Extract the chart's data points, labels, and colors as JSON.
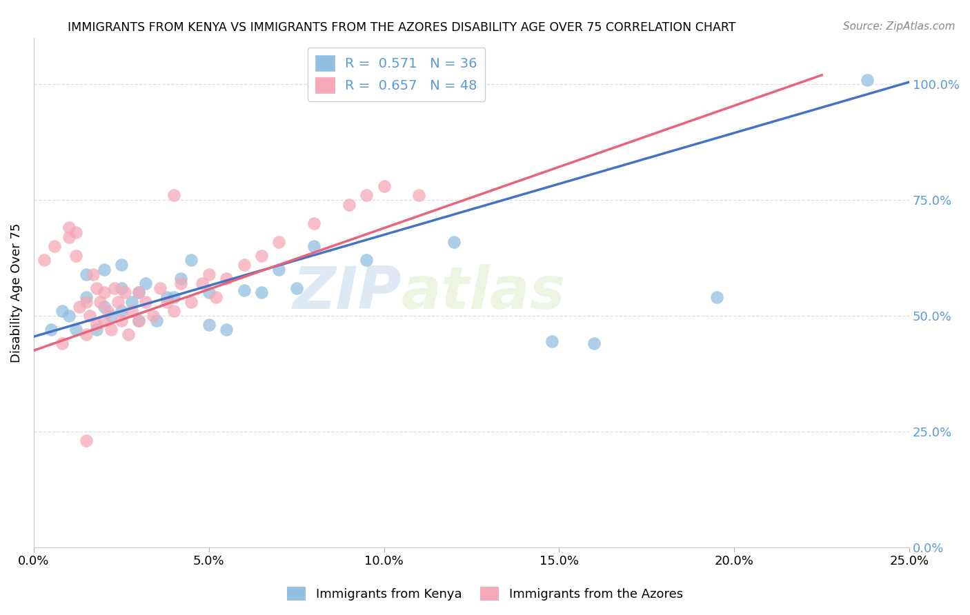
{
  "title": "IMMIGRANTS FROM KENYA VS IMMIGRANTS FROM THE AZORES DISABILITY AGE OVER 75 CORRELATION CHART",
  "source": "Source: ZipAtlas.com",
  "ylabel": "Disability Age Over 75",
  "x_tick_labels": [
    "0.0%",
    "5.0%",
    "10.0%",
    "15.0%",
    "20.0%",
    "25.0%"
  ],
  "y_tick_right_labels": [
    "0.0%",
    "25.0%",
    "50.0%",
    "75.0%",
    "100.0%"
  ],
  "xlim": [
    0,
    0.25
  ],
  "ylim": [
    0,
    1.1
  ],
  "y_ticks": [
    0.0,
    0.25,
    0.5,
    0.75,
    1.0
  ],
  "legend_r_kenya": "0.571",
  "legend_n_kenya": "36",
  "legend_r_azores": "0.657",
  "legend_n_azores": "48",
  "kenya_color": "#92C0E0",
  "azores_color": "#F5A8B8",
  "kenya_line_color": "#4472C4",
  "azores_line_color": "#E8647A",
  "kenya_label": "Immigrants from Kenya",
  "azores_label": "Immigrants from the Azores",
  "watermark_zip": "ZIP",
  "watermark_atlas": "atlas",
  "right_tick_color": "#5B9BD5",
  "grid_color": "#DDDDDD",
  "figure_bg": "#FFFFFF",
  "kenya_line_x": [
    0.0,
    0.25
  ],
  "kenya_line_y": [
    0.455,
    1.005
  ],
  "azores_line_x": [
    0.0,
    0.225
  ],
  "azores_line_y": [
    0.425,
    1.02
  ],
  "kenya_scatter_x": [
    0.005,
    0.008,
    0.01,
    0.012,
    0.015,
    0.015,
    0.018,
    0.02,
    0.02,
    0.022,
    0.025,
    0.025,
    0.025,
    0.028,
    0.03,
    0.03,
    0.032,
    0.035,
    0.038,
    0.04,
    0.042,
    0.045,
    0.05,
    0.05,
    0.055,
    0.06,
    0.065,
    0.07,
    0.075,
    0.08,
    0.095,
    0.12,
    0.148,
    0.16,
    0.195,
    0.238
  ],
  "kenya_scatter_y": [
    0.47,
    0.51,
    0.5,
    0.47,
    0.54,
    0.59,
    0.47,
    0.52,
    0.6,
    0.5,
    0.51,
    0.56,
    0.61,
    0.53,
    0.49,
    0.55,
    0.57,
    0.49,
    0.54,
    0.54,
    0.58,
    0.62,
    0.48,
    0.55,
    0.47,
    0.555,
    0.55,
    0.6,
    0.56,
    0.65,
    0.62,
    0.66,
    0.445,
    0.44,
    0.54,
    1.01
  ],
  "azores_scatter_x": [
    0.003,
    0.006,
    0.008,
    0.01,
    0.01,
    0.012,
    0.012,
    0.013,
    0.015,
    0.015,
    0.016,
    0.017,
    0.018,
    0.018,
    0.019,
    0.02,
    0.02,
    0.021,
    0.022,
    0.023,
    0.024,
    0.025,
    0.026,
    0.027,
    0.028,
    0.03,
    0.03,
    0.032,
    0.034,
    0.036,
    0.038,
    0.04,
    0.042,
    0.045,
    0.048,
    0.05,
    0.052,
    0.055,
    0.06,
    0.065,
    0.07,
    0.08,
    0.09,
    0.095,
    0.1,
    0.11,
    0.04,
    0.015
  ],
  "azores_scatter_y": [
    0.62,
    0.65,
    0.44,
    0.67,
    0.69,
    0.63,
    0.68,
    0.52,
    0.46,
    0.53,
    0.5,
    0.59,
    0.48,
    0.56,
    0.53,
    0.49,
    0.55,
    0.51,
    0.47,
    0.56,
    0.53,
    0.49,
    0.55,
    0.46,
    0.51,
    0.49,
    0.55,
    0.53,
    0.5,
    0.56,
    0.53,
    0.51,
    0.57,
    0.53,
    0.57,
    0.59,
    0.54,
    0.58,
    0.61,
    0.63,
    0.66,
    0.7,
    0.74,
    0.76,
    0.78,
    0.76,
    0.76,
    0.23
  ]
}
